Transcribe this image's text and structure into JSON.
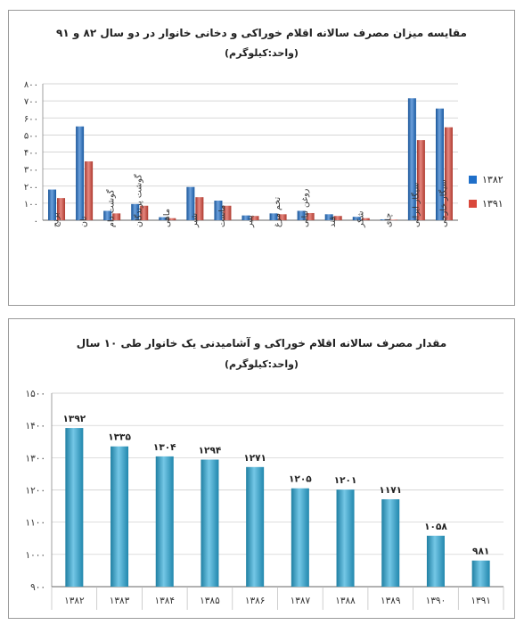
{
  "chart_data": [
    {
      "type": "bar",
      "title": "مقایسه میزان مصرف سالانه اقلام خوراکی و دخانی خانوار در دو سال ۸۲ و ۹۱",
      "subtitle": "(واحد:کیلوگرم)",
      "categories": [
        "برنج",
        "نان",
        "گوشت دام",
        "گوشت پرندگان",
        "ماهی",
        "شیر",
        "ماست",
        "پنیر",
        "تخم مرغ",
        "روغن نباتی",
        "قند",
        "شکر",
        "چای",
        "سیگار ایرانی",
        "سیگار خارجی"
      ],
      "series": [
        {
          "name": "۱۳۸۲",
          "color": "#1f6fc9",
          "values": [
            180,
            550,
            55,
            95,
            18,
            195,
            115,
            28,
            40,
            55,
            35,
            20,
            5,
            715,
            655
          ]
        },
        {
          "name": "۱۳۹۱",
          "color": "#d9483b",
          "values": [
            130,
            345,
            40,
            85,
            12,
            135,
            85,
            25,
            35,
            42,
            25,
            12,
            3,
            470,
            545
          ]
        }
      ],
      "ylim": [
        0,
        800
      ],
      "yticks": [
        "۰",
        "۱۰۰",
        "۲۰۰",
        "۳۰۰",
        "۴۰۰",
        "۵۰۰",
        "۶۰۰",
        "۷۰۰",
        "۸۰۰"
      ],
      "grid": true,
      "legend": "right"
    },
    {
      "type": "bar",
      "title": "مقدار مصرف سالانه اقلام خوراکی و آشامیدنی یک خانوار طی ۱۰ سال",
      "subtitle": "(واحد:کیلوگرم)",
      "categories": [
        "۱۳۸۲",
        "۱۳۸۳",
        "۱۳۸۴",
        "۱۳۸۵",
        "۱۳۸۶",
        "۱۳۸۷",
        "۱۳۸۸",
        "۱۳۸۹",
        "۱۳۹۰",
        "۱۳۹۱"
      ],
      "values": [
        1392,
        1335,
        1304,
        1294,
        1271,
        1205,
        1201,
        1171,
        1058,
        981
      ],
      "data_labels": [
        "۱۳۹۲",
        "۱۳۳۵",
        "۱۳۰۴",
        "۱۲۹۴",
        "۱۲۷۱",
        "۱۲۰۵",
        "۱۲۰۱",
        "۱۱۷۱",
        "۱۰۵۸",
        "۹۸۱"
      ],
      "color": "#29a9d8",
      "ylim": [
        900,
        1500
      ],
      "yticks": [
        "۹۰۰",
        "۱۰۰۰",
        "۱۱۰۰",
        "۱۲۰۰",
        "۱۳۰۰",
        "۱۴۰۰",
        "۱۵۰۰"
      ],
      "grid": true
    }
  ]
}
